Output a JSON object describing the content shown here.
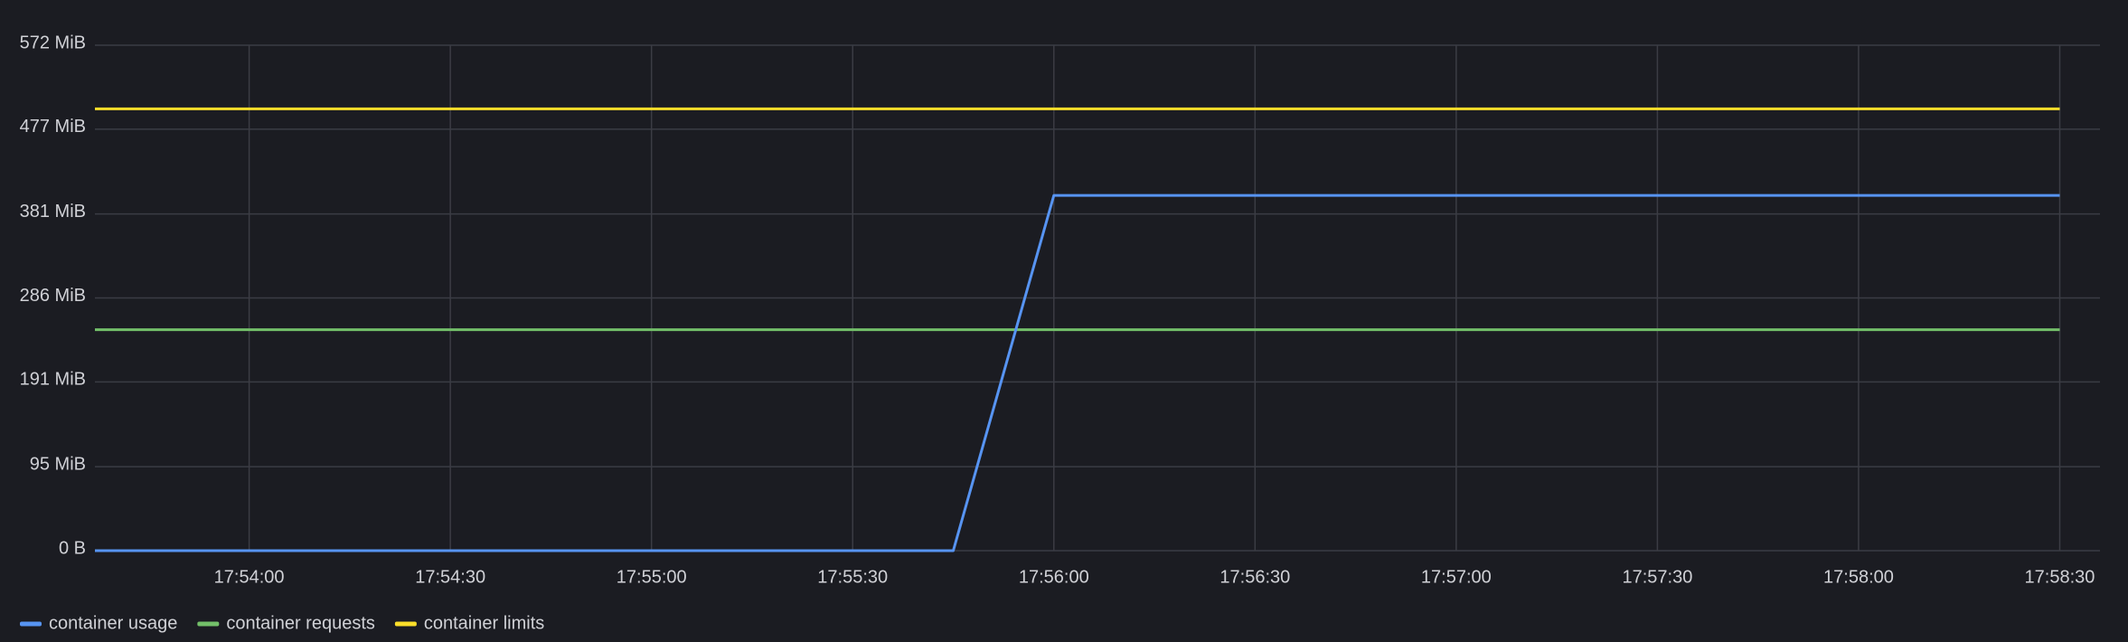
{
  "chart_data": {
    "type": "line",
    "xlim": [
      "17:53:37",
      "17:58:36"
    ],
    "xticks": [
      "17:54:00",
      "17:54:30",
      "17:55:00",
      "17:55:30",
      "17:56:00",
      "17:56:30",
      "17:57:00",
      "17:57:30",
      "17:58:00",
      "17:58:30"
    ],
    "ylim": [
      0,
      572
    ],
    "yticks": [
      {
        "value": 0,
        "label": "0 B"
      },
      {
        "value": 95,
        "label": "95 MiB"
      },
      {
        "value": 191,
        "label": "191 MiB"
      },
      {
        "value": 286,
        "label": "286 MiB"
      },
      {
        "value": 381,
        "label": "381 MiB"
      },
      {
        "value": 477,
        "label": "477 MiB"
      },
      {
        "value": 572,
        "label": "572 MiB"
      }
    ],
    "grid": true,
    "legend": "bottom-left",
    "series": [
      {
        "name": "container usage",
        "color": "#5794f2",
        "x": [
          "17:53:37",
          "17:55:45",
          "17:56:00",
          "17:58:30"
        ],
        "values": [
          0,
          0,
          402,
          402
        ]
      },
      {
        "name": "container requests",
        "color": "#73bf69",
        "x": [
          "17:53:37",
          "17:58:30"
        ],
        "values": [
          250,
          250
        ]
      },
      {
        "name": "container limits",
        "color": "#fade2a",
        "x": [
          "17:53:37",
          "17:58:30"
        ],
        "values": [
          500,
          500
        ]
      }
    ]
  }
}
